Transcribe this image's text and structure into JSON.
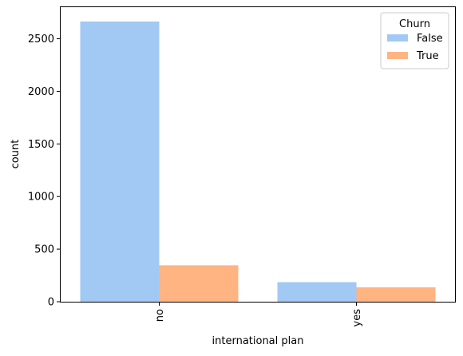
{
  "chart_data": {
    "type": "bar",
    "title": "",
    "xlabel": "international plan",
    "ylabel": "count",
    "categories": [
      "no",
      "yes"
    ],
    "series": [
      {
        "name": "False",
        "values": [
          2664,
          186
        ],
        "color": "#a1c9f4"
      },
      {
        "name": "True",
        "values": [
          346,
          137
        ],
        "color": "#ffb482"
      }
    ],
    "ylim": [
      0,
      2800
    ],
    "yticks": [
      0,
      500,
      1000,
      1500,
      2000,
      2500
    ],
    "grid": false,
    "legend": {
      "title": "Churn",
      "position": "top-right"
    },
    "xtick_rotation": "vertical"
  }
}
